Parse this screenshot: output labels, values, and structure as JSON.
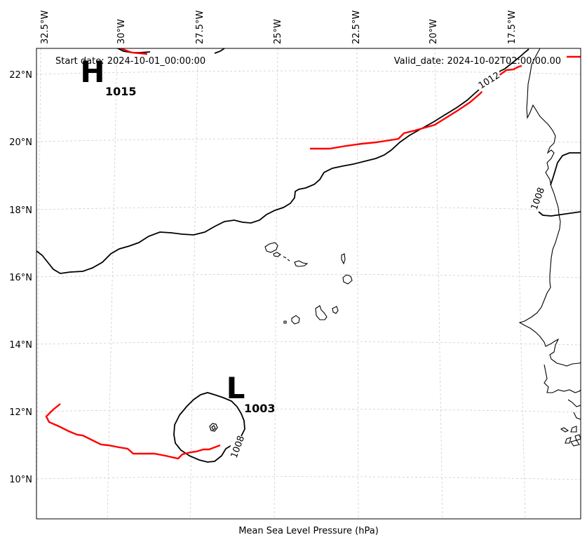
{
  "map": {
    "header": {
      "start_date": "Start date: 2024-10-01_00:00:00",
      "valid_date": "Valid_date: 2024-10-02T02:00:00.00"
    },
    "xlabel": "Mean Sea Level Pressure (hPa)",
    "lon_ticks": [
      "32.5°W",
      "30°W",
      "27.5°W",
      "25°W",
      "22.5°W",
      "20°W",
      "17.5°W"
    ],
    "lat_ticks": [
      "22°N",
      "20°N",
      "18°N",
      "16°N",
      "14°N",
      "12°N",
      "10°N"
    ],
    "pressure_systems": [
      {
        "symbol": "H",
        "value": "1015"
      },
      {
        "symbol": "L",
        "value": "1003"
      }
    ],
    "isobar_labels": [
      "1012",
      "1008",
      "1008"
    ],
    "colors": {
      "isobar": "#000000",
      "front": "#ff0000",
      "grid": "#cccccc",
      "coast": "#000000"
    }
  }
}
